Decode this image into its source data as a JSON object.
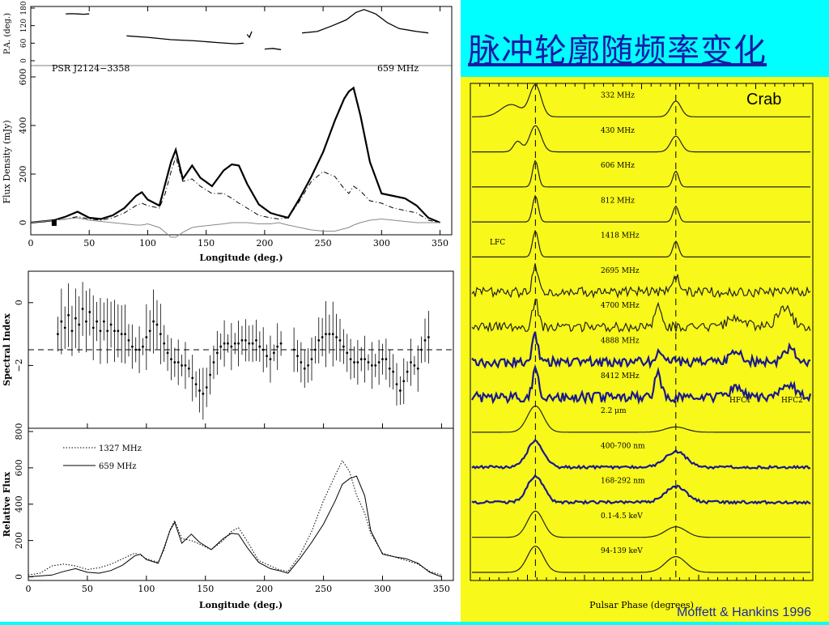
{
  "slide_title": "脉冲轮廓随频率变化",
  "crab_label": "Crab",
  "credit": "Moffett & Hankins 1996",
  "colors": {
    "background": "#00ffff",
    "crab_panel": "#f8f81a",
    "title": "#1a1aa6",
    "profile_blue": "#1a1a8c"
  },
  "chart_data": [
    {
      "type": "line",
      "id": "top-flux",
      "pulsar_label": "PSR J2124−3358",
      "freq_label": "659 MHz",
      "xlabel": "Longitude (deg.)",
      "ylabel": "Flux Density (mJy)",
      "pa_ylabel": "P.A. (deg.)",
      "xlim": [
        0,
        360
      ],
      "xticks": [
        "0",
        "50",
        "100",
        "150",
        "200",
        "250",
        "300",
        "350"
      ],
      "ylim": [
        -50,
        600
      ],
      "yticks": [
        "0",
        "200",
        "400",
        "600"
      ],
      "pa_yticks": [
        "0",
        "60",
        "120",
        "180"
      ],
      "x": [
        0,
        10,
        20,
        30,
        40,
        50,
        60,
        70,
        80,
        90,
        95,
        100,
        110,
        115,
        120,
        124,
        130,
        138,
        145,
        155,
        165,
        172,
        178,
        185,
        195,
        205,
        212,
        220,
        230,
        240,
        250,
        260,
        268,
        272,
        276,
        282,
        290,
        300,
        310,
        320,
        330,
        340,
        350
      ],
      "series": [
        {
          "values": [
            0,
            5,
            10,
            25,
            45,
            20,
            15,
            30,
            60,
            110,
            125,
            95,
            70,
            160,
            250,
            300,
            180,
            235,
            185,
            150,
            215,
            240,
            235,
            160,
            75,
            40,
            30,
            20,
            100,
            190,
            290,
            420,
            510,
            540,
            555,
            440,
            250,
            120,
            110,
            100,
            70,
            20,
            0
          ]
        },
        {
          "values": [
            0,
            3,
            8,
            15,
            25,
            15,
            10,
            20,
            40,
            70,
            80,
            70,
            60,
            120,
            210,
            270,
            170,
            180,
            150,
            120,
            120,
            100,
            80,
            60,
            30,
            20,
            15,
            20,
            90,
            170,
            210,
            190,
            140,
            120,
            150,
            130,
            90,
            80,
            60,
            50,
            40,
            10,
            0
          ]
        },
        {
          "values": [
            0,
            5,
            10,
            15,
            20,
            10,
            5,
            0,
            -5,
            -10,
            -10,
            -5,
            -20,
            -40,
            -60,
            -60,
            -40,
            -20,
            -15,
            -10,
            -5,
            0,
            0,
            0,
            -5,
            -5,
            0,
            -10,
            -20,
            -30,
            -35,
            -35,
            -25,
            -20,
            -10,
            0,
            10,
            15,
            10,
            5,
            0,
            0,
            0
          ]
        }
      ],
      "pa_segments": [
        {
          "x": [
            30,
            35,
            40,
            45,
            50
          ],
          "values": [
            160,
            161,
            160,
            159,
            160
          ]
        },
        {
          "x": [
            82,
            100,
            120,
            140,
            160,
            175,
            182
          ],
          "values": [
            85,
            80,
            72,
            68,
            62,
            58,
            60
          ]
        },
        {
          "x": [
            185,
            187,
            189
          ],
          "values": [
            90,
            80,
            100
          ]
        },
        {
          "x": [
            200,
            207,
            214
          ],
          "values": [
            40,
            42,
            38
          ]
        },
        {
          "x": [
            232,
            245,
            258,
            270,
            278,
            285,
            295,
            305,
            315,
            330,
            340
          ],
          "values": [
            95,
            100,
            120,
            140,
            165,
            175,
            160,
            130,
            110,
            100,
            95
          ]
        }
      ]
    },
    {
      "type": "scatter",
      "id": "spectral-index",
      "xlabel": "",
      "ylabel": "Spectral Index",
      "xlim": [
        0,
        360
      ],
      "ylim": [
        -4,
        1
      ],
      "yticks": [
        "0",
        "−2"
      ],
      "reference_line": -1.5,
      "x": [
        25,
        28,
        31,
        34,
        37,
        40,
        43,
        46,
        49,
        52,
        55,
        58,
        61,
        64,
        67,
        70,
        73,
        76,
        79,
        82,
        85,
        88,
        91,
        94,
        97,
        100,
        103,
        106,
        109,
        112,
        115,
        118,
        121,
        124,
        127,
        130,
        133,
        136,
        139,
        142,
        145,
        148,
        151,
        154,
        157,
        160,
        163,
        166,
        169,
        172,
        175,
        178,
        181,
        184,
        187,
        190,
        193,
        196,
        199,
        202,
        205,
        208,
        211,
        214,
        225,
        228,
        231,
        234,
        237,
        240,
        243,
        246,
        249,
        252,
        255,
        258,
        261,
        264,
        267,
        270,
        273,
        276,
        279,
        282,
        285,
        288,
        291,
        294,
        297,
        300,
        303,
        306,
        309,
        312,
        315,
        318,
        321,
        324,
        327,
        330,
        333,
        336,
        339
      ],
      "values": [
        -1.0,
        -0.6,
        -0.8,
        -0.4,
        -0.9,
        -0.5,
        -0.7,
        -0.2,
        -0.6,
        -0.3,
        -0.8,
        -0.6,
        -0.9,
        -0.6,
        -0.9,
        -0.7,
        -0.9,
        -0.9,
        -1.0,
        -1.0,
        -1.2,
        -1.4,
        -1.5,
        -1.5,
        -1.4,
        -1.1,
        -0.9,
        -0.6,
        -0.7,
        -1.0,
        -1.3,
        -1.6,
        -1.8,
        -1.9,
        -1.9,
        -2.0,
        -2.0,
        -2.1,
        -2.4,
        -2.6,
        -2.8,
        -2.9,
        -2.7,
        -2.3,
        -1.9,
        -1.6,
        -1.4,
        -1.3,
        -1.3,
        -1.4,
        -1.3,
        -1.3,
        -1.2,
        -1.2,
        -1.3,
        -1.3,
        -1.2,
        -1.4,
        -1.5,
        -1.7,
        -1.8,
        -1.6,
        -1.4,
        -1.3,
        -1.5,
        -1.7,
        -1.9,
        -2.1,
        -2.0,
        -1.8,
        -1.5,
        -1.2,
        -1.1,
        -1.0,
        -1.0,
        -1.0,
        -1.1,
        -1.2,
        -1.4,
        -1.6,
        -1.8,
        -1.9,
        -1.9,
        -1.8,
        -1.8,
        -1.9,
        -2.0,
        -2.0,
        -1.9,
        -1.8,
        -1.8,
        -2.1,
        -2.2,
        -2.6,
        -2.8,
        -2.5,
        -2.2,
        -1.9,
        -2.0,
        -2.1,
        -1.5,
        -1.2,
        -1.1
      ]
    },
    {
      "type": "line",
      "id": "relative-flux",
      "xlabel": "Longitude (deg.)",
      "ylabel": "Relative Flux",
      "xlim": [
        0,
        360
      ],
      "xticks": [
        "0",
        "50",
        "100",
        "150",
        "200",
        "250",
        "300",
        "350"
      ],
      "ylim": [
        -20,
        800
      ],
      "yticks": [
        "0",
        "200",
        "400",
        "600",
        "800"
      ],
      "legend": [
        "1327 MHz",
        "659 MHz"
      ],
      "legend_position": "top-left",
      "x": [
        0,
        10,
        20,
        30,
        40,
        50,
        60,
        70,
        80,
        90,
        95,
        100,
        110,
        115,
        120,
        124,
        130,
        138,
        145,
        155,
        165,
        172,
        178,
        185,
        195,
        205,
        212,
        220,
        230,
        240,
        250,
        260,
        266,
        272,
        278,
        285,
        290,
        300,
        310,
        320,
        330,
        340,
        350
      ],
      "series": [
        {
          "name": "1327 MHz",
          "values": [
            10,
            20,
            60,
            70,
            60,
            40,
            50,
            70,
            100,
            130,
            120,
            100,
            80,
            150,
            260,
            310,
            210,
            200,
            180,
            150,
            200,
            250,
            270,
            200,
            90,
            60,
            40,
            30,
            120,
            250,
            420,
            560,
            640,
            580,
            450,
            350,
            240,
            130,
            110,
            90,
            70,
            30,
            10
          ]
        },
        {
          "name": "659 MHz",
          "values": [
            0,
            5,
            10,
            30,
            45,
            25,
            20,
            35,
            65,
            115,
            125,
            95,
            75,
            160,
            255,
            300,
            185,
            235,
            190,
            150,
            210,
            240,
            235,
            165,
            80,
            45,
            35,
            20,
            100,
            190,
            290,
            420,
            510,
            540,
            555,
            445,
            255,
            125,
            110,
            100,
            75,
            25,
            0
          ]
        }
      ]
    },
    {
      "type": "line",
      "id": "crab-profiles",
      "xlabel": "Pulsar Phase (degrees)",
      "ylabel": "",
      "bands": [
        "332 MHz",
        "430 MHz",
        "606 MHz",
        "812 MHz",
        "1418 MHz",
        "2695 MHz",
        "4700 MHz",
        "4888 MHz",
        "8412 MHz",
        "2.2 μm",
        "400-700 nm",
        "168-292 nm",
        "0.1-4.5 keV",
        "94-139 keV"
      ],
      "annotations": [
        "LFC",
        "HFC1",
        "HFC2"
      ]
    }
  ]
}
